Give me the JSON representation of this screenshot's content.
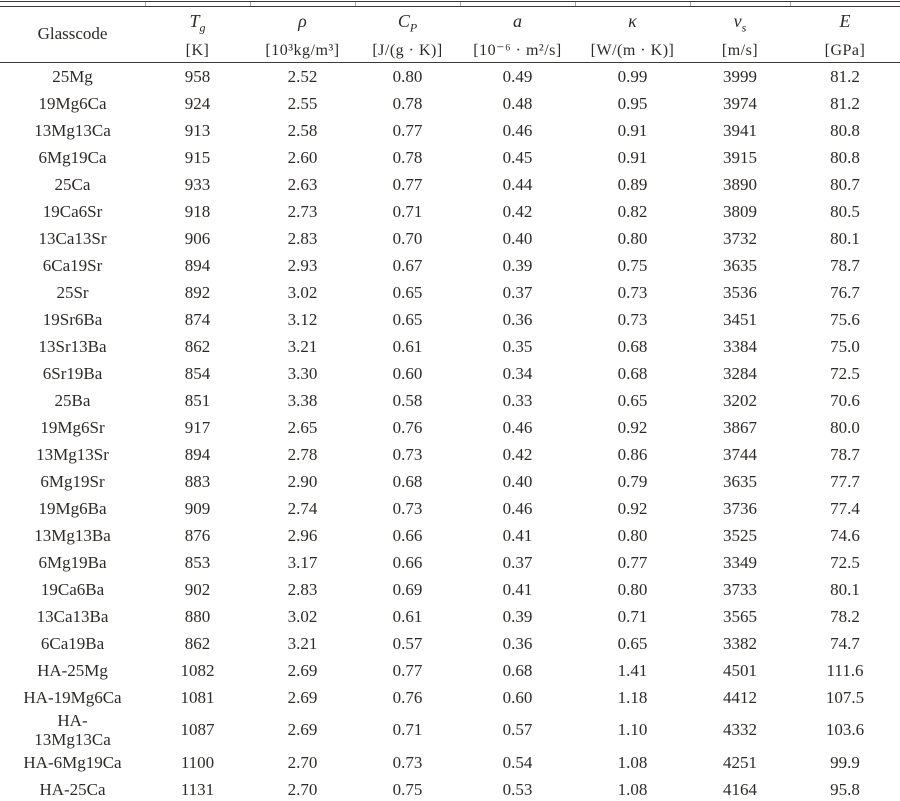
{
  "table": {
    "columns": [
      {
        "label": "Glasscode",
        "sym": "",
        "sub": "",
        "unit": ""
      },
      {
        "sym": "T",
        "sub": "g",
        "unit": "[K]"
      },
      {
        "sym": "ρ",
        "sub": "",
        "unit": "[10³kg/m³]"
      },
      {
        "sym": "C",
        "sub": "P",
        "unit": "[J/(g · K)]"
      },
      {
        "sym": "a",
        "sub": "",
        "unit": "[10⁻⁶ · m²/s]"
      },
      {
        "sym": "κ",
        "sub": "",
        "unit": "[W/(m · K)]"
      },
      {
        "sym": "v",
        "sub": "s",
        "unit": "[m/s]"
      },
      {
        "sym": "E",
        "sub": "",
        "unit": "[GPa]"
      }
    ],
    "rows": [
      [
        "25Mg",
        "958",
        "2.52",
        "0.80",
        "0.49",
        "0.99",
        "3999",
        "81.2"
      ],
      [
        "19Mg6Ca",
        "924",
        "2.55",
        "0.78",
        "0.48",
        "0.95",
        "3974",
        "81.2"
      ],
      [
        "13Mg13Ca",
        "913",
        "2.58",
        "0.77",
        "0.46",
        "0.91",
        "3941",
        "80.8"
      ],
      [
        "6Mg19Ca",
        "915",
        "2.60",
        "0.78",
        "0.45",
        "0.91",
        "3915",
        "80.8"
      ],
      [
        "25Ca",
        "933",
        "2.63",
        "0.77",
        "0.44",
        "0.89",
        "3890",
        "80.7"
      ],
      [
        "19Ca6Sr",
        "918",
        "2.73",
        "0.71",
        "0.42",
        "0.82",
        "3809",
        "80.5"
      ],
      [
        "13Ca13Sr",
        "906",
        "2.83",
        "0.70",
        "0.40",
        "0.80",
        "3732",
        "80.1"
      ],
      [
        "6Ca19Sr",
        "894",
        "2.93",
        "0.67",
        "0.39",
        "0.75",
        "3635",
        "78.7"
      ],
      [
        "25Sr",
        "892",
        "3.02",
        "0.65",
        "0.37",
        "0.73",
        "3536",
        "76.7"
      ],
      [
        "19Sr6Ba",
        "874",
        "3.12",
        "0.65",
        "0.36",
        "0.73",
        "3451",
        "75.6"
      ],
      [
        "13Sr13Ba",
        "862",
        "3.21",
        "0.61",
        "0.35",
        "0.68",
        "3384",
        "75.0"
      ],
      [
        "6Sr19Ba",
        "854",
        "3.30",
        "0.60",
        "0.34",
        "0.68",
        "3284",
        "72.5"
      ],
      [
        "25Ba",
        "851",
        "3.38",
        "0.58",
        "0.33",
        "0.65",
        "3202",
        "70.6"
      ],
      [
        "19Mg6Sr",
        "917",
        "2.65",
        "0.76",
        "0.46",
        "0.92",
        "3867",
        "80.0"
      ],
      [
        "13Mg13Sr",
        "894",
        "2.78",
        "0.73",
        "0.42",
        "0.86",
        "3744",
        "78.7"
      ],
      [
        "6Mg19Sr",
        "883",
        "2.90",
        "0.68",
        "0.40",
        "0.79",
        "3635",
        "77.7"
      ],
      [
        "19Mg6Ba",
        "909",
        "2.74",
        "0.73",
        "0.46",
        "0.92",
        "3736",
        "77.4"
      ],
      [
        "13Mg13Ba",
        "876",
        "2.96",
        "0.66",
        "0.41",
        "0.80",
        "3525",
        "74.6"
      ],
      [
        "6Mg19Ba",
        "853",
        "3.17",
        "0.66",
        "0.37",
        "0.77",
        "3349",
        "72.5"
      ],
      [
        "19Ca6Ba",
        "902",
        "2.83",
        "0.69",
        "0.41",
        "0.80",
        "3733",
        "80.1"
      ],
      [
        "13Ca13Ba",
        "880",
        "3.02",
        "0.61",
        "0.39",
        "0.71",
        "3565",
        "78.2"
      ],
      [
        "6Ca19Ba",
        "862",
        "3.21",
        "0.57",
        "0.36",
        "0.65",
        "3382",
        "74.7"
      ],
      [
        "HA-25Mg",
        "1082",
        "2.69",
        "0.77",
        "0.68",
        "1.41",
        "4501",
        "111.6"
      ],
      [
        "HA-19Mg6Ca",
        "1081",
        "2.69",
        "0.76",
        "0.60",
        "1.18",
        "4412",
        "107.5"
      ],
      [
        "HA-\n13Mg13Ca",
        "1087",
        "2.69",
        "0.71",
        "0.57",
        "1.10",
        "4332",
        "103.6"
      ],
      [
        "HA-6Mg19Ca",
        "1100",
        "2.70",
        "0.73",
        "0.54",
        "1.08",
        "4251",
        "99.9"
      ],
      [
        "HA-25Ca",
        "1131",
        "2.70",
        "0.75",
        "0.53",
        "1.08",
        "4164",
        "95.8"
      ]
    ]
  }
}
